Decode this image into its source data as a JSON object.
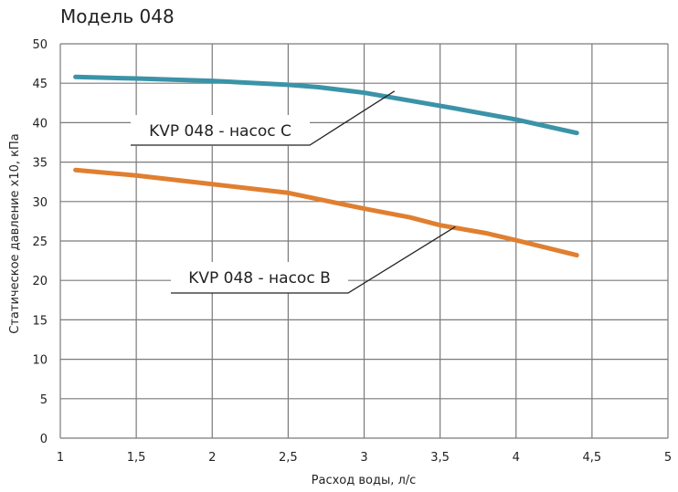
{
  "chart_data": {
    "type": "line",
    "title": "Модель 048",
    "xlabel": "Расход воды, л/с",
    "ylabel": "Статическое давление x10, кПа",
    "xlim": [
      1,
      5
    ],
    "ylim": [
      0,
      50
    ],
    "xticks": [
      1,
      1.5,
      2,
      2.5,
      3,
      3.5,
      4,
      4.5,
      5
    ],
    "xtick_labels": [
      "1",
      "1,5",
      "2",
      "2,5",
      "3",
      "3,5",
      "4",
      "4,5",
      "5"
    ],
    "yticks": [
      0,
      5,
      10,
      15,
      20,
      25,
      30,
      35,
      40,
      45,
      50
    ],
    "ytick_labels": [
      "0",
      "5",
      "10",
      "15",
      "20",
      "25",
      "30",
      "35",
      "40",
      "45",
      "50"
    ],
    "grid": true,
    "series": [
      {
        "name": "KVP 048 - насос C",
        "color": "#3b93a8",
        "x": [
          1.1,
          1.5,
          2.0,
          2.5,
          2.7,
          3.0,
          3.3,
          3.6,
          4.0,
          4.4
        ],
        "y": [
          45.8,
          45.6,
          45.3,
          44.8,
          44.5,
          43.8,
          42.8,
          41.8,
          40.4,
          38.7
        ]
      },
      {
        "name": "KVP 048 - насос B",
        "color": "#e07f30",
        "x": [
          1.1,
          1.5,
          2.0,
          2.5,
          3.0,
          3.3,
          3.5,
          3.8,
          4.0,
          4.4
        ],
        "y": [
          34.0,
          33.3,
          32.2,
          31.1,
          29.1,
          28.0,
          27.0,
          26.0,
          25.1,
          23.2
        ]
      }
    ],
    "annotations": [
      {
        "text": "KVP 048 - насос C",
        "series": 0,
        "point_x": 3.2,
        "point_y": 44.0
      },
      {
        "text": "KVP 048 - насос B",
        "series": 1,
        "point_x": 3.6,
        "point_y": 26.8
      }
    ]
  }
}
